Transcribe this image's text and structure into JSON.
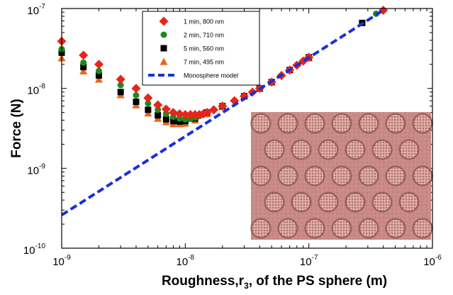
{
  "chart_data": {
    "type": "scatter",
    "title": "",
    "xlabel": "Roughness,r",
    "xlabel_sub": "3",
    "xlabel_suffix": ", of the PS sphere (m)",
    "ylabel": "Force (N)",
    "xscale": "log",
    "yscale": "log",
    "xlim": [
      1e-09,
      1e-06
    ],
    "ylim": [
      1e-10,
      1e-07
    ],
    "xticks": [
      {
        "base": "10",
        "exp": "-9"
      },
      {
        "base": "10",
        "exp": "-8"
      },
      {
        "base": "10",
        "exp": "-7"
      },
      {
        "base": "10",
        "exp": "-6"
      }
    ],
    "yticks": [
      {
        "base": "10",
        "exp": "-10"
      },
      {
        "base": "10",
        "exp": "-9"
      },
      {
        "base": "10",
        "exp": "-8"
      },
      {
        "base": "10",
        "exp": "-7"
      }
    ],
    "legend_position": "top-left",
    "grid": false,
    "series": [
      {
        "name": "1 min, 800 nm",
        "marker": "diamond",
        "color": "#e8251a",
        "x": [
          1e-09,
          1.5e-09,
          2e-09,
          3e-09,
          4e-09,
          5e-09,
          6e-09,
          7e-09,
          8e-09,
          9e-09,
          1e-08,
          1.1e-08,
          1.2e-08,
          1.3e-08,
          1.4e-08,
          1.5e-08,
          1.7e-08,
          2e-08,
          2.5e-08,
          3e-08,
          3.5e-08,
          4e-08,
          5e-08,
          6e-08,
          7e-08,
          8e-08,
          9e-08,
          1e-07,
          4e-07
        ],
        "y": [
          3.9e-08,
          2.6e-08,
          2e-08,
          1.3e-08,
          1e-08,
          7.6e-09,
          6.2e-09,
          5.5e-09,
          5e-09,
          4.8e-09,
          4.7e-09,
          4.7e-09,
          4.7e-09,
          4.7e-09,
          4.8e-09,
          5e-09,
          5.4e-09,
          6e-09,
          7e-09,
          8e-09,
          9e-09,
          1e-08,
          1.2e-08,
          1.45e-08,
          1.7e-08,
          1.95e-08,
          2.2e-08,
          2.45e-08,
          9.5e-08
        ]
      },
      {
        "name": "2 min, 710 nm",
        "marker": "circle",
        "color": "#1e8a1e",
        "x": [
          1e-09,
          1.5e-09,
          2e-09,
          3e-09,
          4e-09,
          5e-09,
          6e-09,
          7e-09,
          8e-09,
          9e-09,
          1e-08,
          1.1e-08,
          1.2e-08,
          1.3e-08,
          1.5e-08,
          1.7e-08,
          2e-08,
          2.5e-08,
          3e-08,
          4e-08,
          5e-08,
          6e-08,
          7e-08,
          8e-08,
          1e-07,
          3.5e-07
        ],
        "y": [
          3.1e-08,
          2.1e-08,
          1.65e-08,
          1.1e-08,
          8.2e-09,
          6.5e-09,
          5.4e-09,
          4.8e-09,
          4.4e-09,
          4.2e-09,
          4.1e-09,
          4.15e-09,
          4.3e-09,
          4.5e-09,
          5e-09,
          5.4e-09,
          6e-09,
          7e-09,
          8e-09,
          1e-08,
          1.2e-08,
          1.45e-08,
          1.7e-08,
          1.95e-08,
          2.45e-08,
          8.6e-08
        ]
      },
      {
        "name": "5 min, 560 nm",
        "marker": "square",
        "color": "#000000",
        "x": [
          1e-09,
          1.5e-09,
          2e-09,
          3e-09,
          4e-09,
          5e-09,
          6e-09,
          7e-09,
          8e-09,
          9e-09,
          1e-08,
          1.2e-08,
          1.5e-08,
          2e-08,
          3e-08,
          4e-08,
          5e-08,
          7e-08,
          1e-07,
          2.7e-07
        ],
        "y": [
          2.8e-08,
          1.85e-08,
          1.45e-08,
          9e-09,
          6.8e-09,
          5.4e-09,
          4.6e-09,
          4.1e-09,
          3.9e-09,
          3.85e-09,
          3.9e-09,
          4.2e-09,
          5e-09,
          6e-09,
          8e-09,
          1e-08,
          1.2e-08,
          1.7e-08,
          2.45e-08,
          6.6e-08
        ]
      },
      {
        "name": "7 min, 495 nm",
        "marker": "triangle",
        "color": "#e8661a",
        "x": [
          1e-09,
          1.5e-09,
          2e-09,
          3e-09,
          4e-09,
          5e-09,
          6e-09,
          7e-09,
          8e-09,
          9e-09,
          1e-08,
          1.2e-08,
          1.5e-08,
          2e-08,
          3e-08,
          4e-08,
          5e-08,
          7e-08,
          1e-07
        ],
        "y": [
          2.4e-08,
          1.65e-08,
          1.3e-08,
          8.3e-09,
          6.2e-09,
          4.9e-09,
          4.2e-09,
          3.8e-09,
          3.6e-09,
          3.6e-09,
          3.65e-09,
          4e-09,
          4.8e-09,
          5.9e-09,
          8e-09,
          1e-08,
          1.2e-08,
          1.7e-08,
          2.4e-08
        ]
      },
      {
        "name": "Monosphere model",
        "marker": "dashed-line",
        "color": "#1a2fd4",
        "x": [
          1e-09,
          4e-07
        ],
        "y": [
          2.6e-10,
          9.5e-08
        ]
      }
    ]
  },
  "inset": {
    "image": "textured-spheres-micrograph",
    "background": "#c98a86",
    "dot_color": "#d9a29b"
  }
}
